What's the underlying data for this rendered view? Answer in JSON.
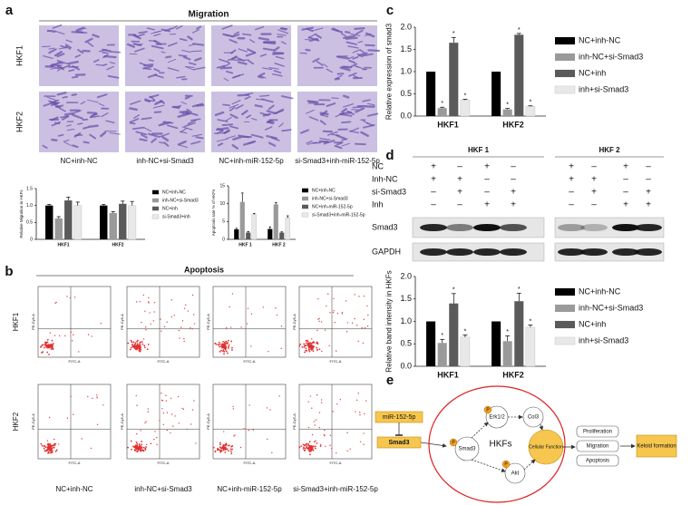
{
  "panel_labels": [
    "a",
    "b",
    "c",
    "d",
    "e"
  ],
  "migration": {
    "title": "Migration",
    "rows": [
      "HKF1",
      "HKF2"
    ],
    "columns": [
      "NC+inh-NC",
      "inh-NC+si-Smad3",
      "NC+inh-miR-152-5p",
      "si-Smad3+inh-miR-152-5p"
    ]
  },
  "apoptosis": {
    "title": "Apoptosis",
    "rows": [
      "HKF1",
      "HKF2"
    ],
    "columns": [
      "NC+inh-NC",
      "inh-NC+si-Smad3",
      "NC+inh-miR-152-5p",
      "si-Smad3+inh-miR-152-5p"
    ],
    "x_axis": "FITC-A",
    "y_axis": "PE-Cy5-A"
  },
  "western": {
    "groups": [
      "HKF 1",
      "HKF 2"
    ],
    "rows": [
      {
        "label": "NC",
        "signs": [
          "+",
          "–",
          "+",
          "–",
          "+",
          "–",
          "+",
          "–"
        ]
      },
      {
        "label": "Inh-NC",
        "signs": [
          "+",
          "+",
          "–",
          "–",
          "+",
          "+",
          "–",
          "–"
        ]
      },
      {
        "label": "si-Smad3",
        "signs": [
          "–",
          "+",
          "–",
          "+",
          "–",
          "+",
          "–",
          "+"
        ]
      },
      {
        "label": "Inh",
        "signs": [
          "–",
          "–",
          "+",
          "+",
          "–",
          "–",
          "+",
          "+"
        ]
      }
    ],
    "bands": [
      "Smad3",
      "GAPDH"
    ]
  },
  "pathway": {
    "mirna": "miR-152-5p",
    "target": "Smad3",
    "cell": "HKFs",
    "phospho": "P",
    "erk": "Erk1/2",
    "col": "Col3",
    "akt": "Akt",
    "function": "Cellular Function",
    "outcomes": [
      "Proliferation",
      "Migration",
      "Apoptosis"
    ],
    "result": "Keloid formation"
  },
  "chart_data": [
    {
      "type": "bar",
      "ylabel": "Relative Migration in HKFs",
      "categories": [
        "HKF1",
        "HKF2"
      ],
      "ylim": [
        0,
        1.5
      ],
      "yticks": [
        0,
        0.5,
        {
          "value": 1,
          "label": "1.0"
        },
        1.5
      ],
      "series": [
        {
          "name": "NC+inh-NC",
          "color": "#000000",
          "values": [
            1.0,
            1.0
          ],
          "errors": [
            0.03,
            0.03
          ]
        },
        {
          "name": "inh-NC+si-Smad3",
          "color": "#9a9a9a",
          "values": [
            0.62,
            0.78
          ],
          "errors": [
            0.05,
            0.04
          ]
        },
        {
          "name": "NC+inh",
          "color": "#5a5a5a",
          "values": [
            1.15,
            1.05
          ],
          "errors": [
            0.1,
            0.08
          ]
        },
        {
          "name": "si-Smad3+inh",
          "color": "#e8e8e8",
          "values": [
            1.0,
            1.0
          ],
          "errors": [
            0.1,
            0.12
          ]
        }
      ]
    },
    {
      "type": "bar",
      "ylabel": "Apoptosis rate % of HKFs",
      "categories": [
        "HKF 1",
        "HKF 2"
      ],
      "ylim": [
        0,
        15
      ],
      "yticks": [
        0,
        5,
        10,
        15
      ],
      "series": [
        {
          "name": "NC+inh-NC",
          "color": "#000000",
          "values": [
            2.8,
            2.9
          ],
          "errors": [
            0.3,
            0.6
          ]
        },
        {
          "name": "inh-NC+si-Smad3",
          "color": "#9a9a9a",
          "values": [
            10.5,
            9.8
          ],
          "errors": [
            2.5,
            0.5
          ]
        },
        {
          "name": "NC+inh-miR-152-5p",
          "color": "#5a5a5a",
          "values": [
            1.9,
            1.9
          ],
          "errors": [
            0.3,
            0.2
          ]
        },
        {
          "name": "si-Smad3+inh-miR-152-5p",
          "color": "#e8e8e8",
          "values": [
            7.0,
            6.0
          ],
          "errors": [
            0.3,
            0.6
          ]
        }
      ]
    },
    {
      "type": "bar",
      "ylabel": "Relative expression of smad3",
      "categories": [
        "HKF1",
        "HKF2"
      ],
      "annotation": "*",
      "ylim": [
        0,
        2.0
      ],
      "yticks": [
        {
          "value": 0,
          "label": "0.0"
        },
        0.5,
        {
          "value": 1,
          "label": "1.0"
        },
        1.5,
        {
          "value": 2,
          "label": "2.0"
        }
      ],
      "series": [
        {
          "name": "NC+inh-NC",
          "color": "#000000",
          "values": [
            1.0,
            1.0
          ],
          "errors": [
            0,
            0
          ]
        },
        {
          "name": "inh-NC+si-Smad3",
          "color": "#9a9a9a",
          "values": [
            0.18,
            0.15
          ],
          "errors": [
            0.02,
            0.02
          ],
          "significant": true
        },
        {
          "name": "NC+inh",
          "color": "#5a5a5a",
          "values": [
            1.65,
            1.83
          ],
          "errors": [
            0.12,
            0.03
          ],
          "significant": true
        },
        {
          "name": "inh+si-Smad3",
          "color": "#e8e8e8",
          "values": [
            0.36,
            0.22
          ],
          "errors": [
            0.02,
            0.01
          ],
          "significant": true
        }
      ]
    },
    {
      "type": "bar",
      "ylabel": "Relative band intensity in HKFs",
      "categories": [
        "HKF1",
        "HKF2"
      ],
      "annotation": "*",
      "ylim": [
        0,
        2.0
      ],
      "yticks": [
        {
          "value": 0,
          "label": "0.0"
        },
        0.5,
        {
          "value": 1,
          "label": "1.0"
        },
        1.5,
        {
          "value": 2,
          "label": "2.0"
        }
      ],
      "series": [
        {
          "name": "NC+inh-NC",
          "color": "#000000",
          "values": [
            1.0,
            1.0
          ],
          "errors": [
            0,
            0
          ]
        },
        {
          "name": "inh-NC+si-Smad3",
          "color": "#9a9a9a",
          "values": [
            0.52,
            0.56
          ],
          "errors": [
            0.08,
            0.12
          ],
          "significant": true
        },
        {
          "name": "NC+inh",
          "color": "#5a5a5a",
          "values": [
            1.4,
            1.45
          ],
          "errors": [
            0.22,
            0.18
          ],
          "significant": true
        },
        {
          "name": "inh+si-Smad3",
          "color": "#e8e8e8",
          "values": [
            0.65,
            0.87
          ],
          "errors": [
            0.05,
            0.05
          ],
          "significant": true
        }
      ]
    }
  ]
}
